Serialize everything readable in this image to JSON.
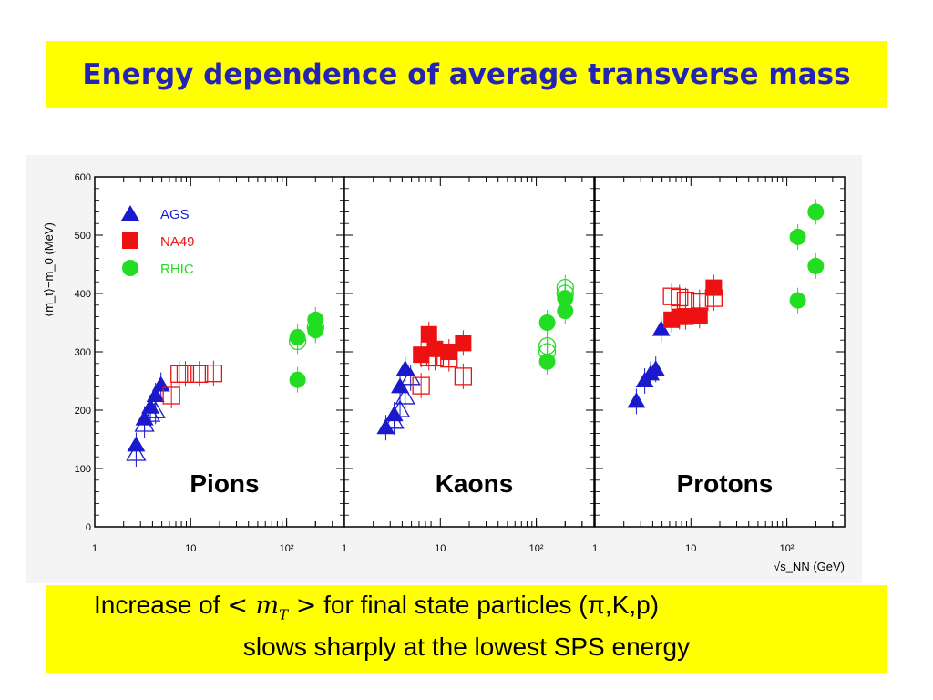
{
  "slide": {
    "title": "Energy dependence of average transverse mass",
    "caption": {
      "line1_prefix": "Increase of ",
      "symbol_lt": "<",
      "symbol_m": "m",
      "symbol_sub": "T",
      "symbol_gt": ">",
      "line1_suffix": " for final state particles (π,K,p)",
      "line2": "slows sharply at the lowest SPS energy"
    }
  },
  "chart_data": {
    "type": "scatter",
    "ylabel": "⟨m_t⟩−m_0 (MeV)",
    "xlabel": "√s_NN (GeV)",
    "x_scale": "log",
    "xlim": [
      1,
      400
    ],
    "ylim": [
      0,
      600
    ],
    "y_ticks": [
      "0",
      "100",
      "200",
      "300",
      "400",
      "500",
      "600"
    ],
    "x_ticks": [
      "1",
      "10",
      "10²"
    ],
    "legend": {
      "placement": "top-left",
      "entries": [
        {
          "name": "AGS",
          "color": "#1a1acc",
          "marker": "triangle"
        },
        {
          "name": "NA49",
          "color": "#ee1111",
          "marker": "square"
        },
        {
          "name": "RHIC",
          "color": "#22dd22",
          "marker": "circle"
        }
      ]
    },
    "colors": {
      "AGS": "#1a1acc",
      "NA49": "#ee1111",
      "RHIC": "#22dd22"
    },
    "panels": [
      {
        "label": "Pions",
        "series": [
          {
            "name": "AGS",
            "filled": [
              [
                2.7,
                140
              ],
              [
                3.3,
                185
              ],
              [
                3.8,
                205
              ],
              [
                4.3,
                225
              ],
              [
                4.9,
                243
              ]
            ],
            "open": [
              [
                2.7,
                125
              ],
              [
                3.3,
                175
              ],
              [
                3.8,
                192
              ],
              [
                4.3,
                198
              ]
            ]
          },
          {
            "name": "NA49",
            "filled": [],
            "open": [
              [
                6.3,
                225
              ],
              [
                7.6,
                262
              ],
              [
                8.8,
                262
              ],
              [
                12.3,
                262
              ],
              [
                17.3,
                263
              ]
            ]
          },
          {
            "name": "RHIC",
            "filled": [
              [
                130,
                252
              ],
              [
                130,
                325
              ],
              [
                200,
                337
              ],
              [
                200,
                355
              ]
            ],
            "open": [
              [
                130,
                318
              ],
              [
                200,
                342
              ]
            ]
          }
        ]
      },
      {
        "label": "Kaons",
        "series": [
          {
            "name": "AGS",
            "filled": [
              [
                2.7,
                170
              ],
              [
                3.3,
                192
              ],
              [
                3.8,
                240
              ],
              [
                4.3,
                270
              ]
            ],
            "open": [
              [
                3.3,
                180
              ],
              [
                3.8,
                200
              ],
              [
                4.3,
                222
              ],
              [
                4.9,
                255
              ]
            ]
          },
          {
            "name": "NA49",
            "filled": [
              [
                6.3,
                295
              ],
              [
                7.6,
                330
              ],
              [
                8.8,
                305
              ],
              [
                12.3,
                300
              ],
              [
                17.3,
                315
              ]
            ],
            "open": [
              [
                6.3,
                242
              ],
              [
                7.6,
                290
              ],
              [
                8.8,
                290
              ],
              [
                12.3,
                288
              ],
              [
                17.3,
                258
              ]
            ]
          },
          {
            "name": "RHIC",
            "filled": [
              [
                130,
                350
              ],
              [
                130,
                283
              ],
              [
                200,
                370
              ],
              [
                200,
                392
              ]
            ],
            "open": [
              [
                130,
                310
              ],
              [
                130,
                300
              ],
              [
                200,
                400
              ],
              [
                200,
                410
              ]
            ]
          }
        ]
      },
      {
        "label": "Protons",
        "series": [
          {
            "name": "AGS",
            "filled": [
              [
                2.7,
                215
              ],
              [
                3.3,
                250
              ],
              [
                3.8,
                262
              ],
              [
                4.3,
                270
              ],
              [
                4.9,
                338
              ]
            ],
            "open": []
          },
          {
            "name": "NA49",
            "filled": [
              [
                6.3,
                355
              ],
              [
                7.6,
                360
              ],
              [
                8.8,
                360
              ],
              [
                12.3,
                362
              ],
              [
                17.3,
                410
              ]
            ],
            "open": [
              [
                6.3,
                395
              ],
              [
                7.6,
                393
              ],
              [
                8.8,
                388
              ],
              [
                12.3,
                385
              ],
              [
                17.3,
                392
              ]
            ]
          },
          {
            "name": "RHIC",
            "filled": [
              [
                130,
                388
              ],
              [
                130,
                497
              ],
              [
                200,
                540
              ],
              [
                200,
                447
              ]
            ],
            "open": []
          }
        ]
      }
    ]
  }
}
